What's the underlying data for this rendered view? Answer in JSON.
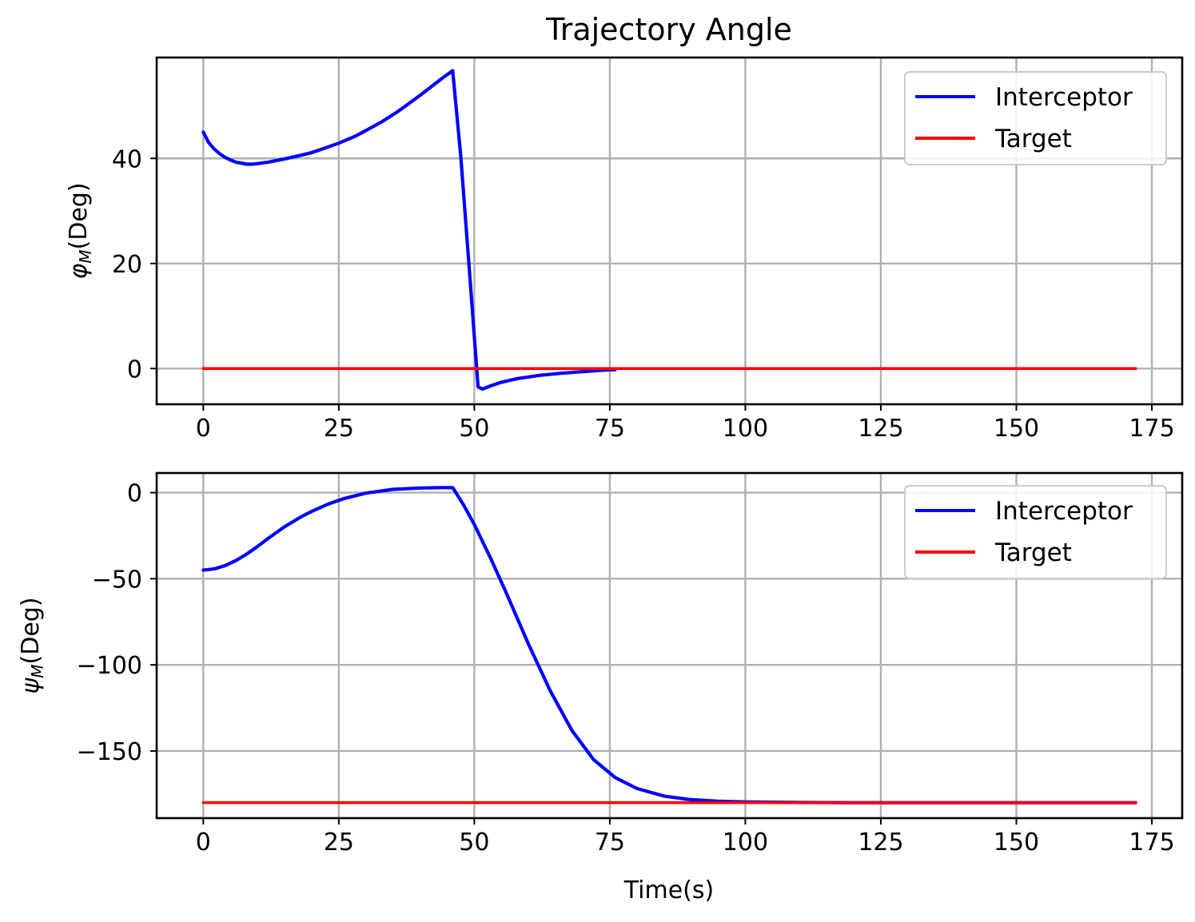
{
  "chart_data": [
    {
      "type": "line",
      "title": "Trajectory Angle",
      "ylabel": "φ_M(Deg)",
      "ylabel_symbol": "φ",
      "ylabel_sub": "M",
      "ylabel_unit": "(Deg)",
      "xlabel": "",
      "xlim": [
        -8.6,
        180.6
      ],
      "ylim": [
        -6.8,
        59.2
      ],
      "xticks": [
        0,
        25,
        50,
        75,
        100,
        125,
        150,
        175
      ],
      "yticks": [
        0,
        20,
        40
      ],
      "ytick_labels": [
        "0",
        "20",
        "40"
      ],
      "grid": true,
      "legend": "top-right",
      "series": [
        {
          "name": "Interceptor",
          "color": "#0000ff",
          "x": [
            0,
            1,
            2,
            3,
            4,
            5,
            6,
            7,
            8,
            9,
            10,
            12,
            15,
            18,
            20,
            22,
            25,
            28,
            30,
            33,
            36,
            38,
            40,
            42,
            44,
            46,
            47.5,
            49,
            50.7,
            51.5,
            53,
            55,
            58,
            62,
            66,
            70,
            74,
            76
          ],
          "y": [
            45,
            43,
            41.8,
            40.9,
            40.2,
            39.7,
            39.3,
            39.1,
            38.9,
            38.9,
            39.0,
            39.3,
            39.9,
            40.6,
            41.1,
            41.8,
            42.9,
            44.2,
            45.3,
            47.0,
            49.0,
            50.5,
            52.0,
            53.6,
            55.2,
            56.7,
            40.5,
            20.0,
            -3.5,
            -3.9,
            -3.3,
            -2.6,
            -1.9,
            -1.3,
            -0.9,
            -0.6,
            -0.3,
            -0.2
          ]
        },
        {
          "name": "Target",
          "color": "#ff0000",
          "x": [
            0,
            172
          ],
          "y": [
            0,
            0
          ]
        }
      ]
    },
    {
      "type": "line",
      "title": "",
      "ylabel": "ψ_M(Deg)",
      "ylabel_symbol": "ψ",
      "ylabel_sub": "M",
      "ylabel_unit": "(Deg)",
      "xlabel": "Time(s)",
      "xlim": [
        -8.6,
        180.6
      ],
      "ylim": [
        -189,
        11.4
      ],
      "xticks": [
        0,
        25,
        50,
        75,
        100,
        125,
        150,
        175
      ],
      "yticks": [
        0,
        -50,
        -100,
        -150
      ],
      "ytick_labels": [
        "0",
        "−50",
        "−100",
        "−150"
      ],
      "grid": true,
      "legend": "top-right",
      "series": [
        {
          "name": "Interceptor",
          "color": "#0000ff",
          "x": [
            0,
            2,
            4,
            6,
            8,
            10,
            12,
            15,
            18,
            20,
            23,
            26,
            30,
            35,
            40,
            44,
            46,
            48,
            50,
            53,
            56,
            60,
            64,
            68,
            72,
            76,
            80,
            85,
            90,
            95,
            100,
            110,
            120,
            172
          ],
          "y": [
            -45,
            -44.3,
            -42.4,
            -39.5,
            -35.7,
            -31.3,
            -26.5,
            -19.8,
            -14.1,
            -10.9,
            -6.7,
            -3.4,
            -0.3,
            1.9,
            2.7,
            2.9,
            2.9,
            -7.0,
            -18.5,
            -38.0,
            -59.0,
            -88.0,
            -115.0,
            -138.0,
            -155.0,
            -165.5,
            -171.8,
            -176.2,
            -178.3,
            -179.2,
            -179.6,
            -179.9,
            -180,
            -180
          ]
        },
        {
          "name": "Target",
          "color": "#ff0000",
          "x": [
            0,
            172
          ],
          "y": [
            -180,
            -180
          ]
        }
      ]
    }
  ]
}
